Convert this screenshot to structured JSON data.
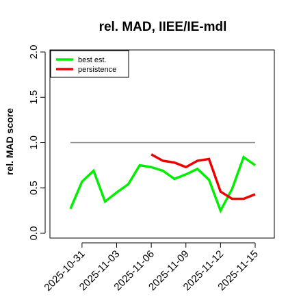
{
  "chart_data": {
    "type": "line",
    "title": "rel. MAD, IIEE/IE-mdl",
    "ylabel": "rel. MAD score",
    "xlabel": "",
    "ylim": [
      0,
      2
    ],
    "yticks": [
      "0.0",
      "0.5",
      "1.0",
      "1.5",
      "2.0"
    ],
    "ytick_values": [
      0,
      0.5,
      1.0,
      1.5,
      2.0
    ],
    "xticks": [
      "2025-10-31",
      "2025-11-03",
      "2025-11-06",
      "2025-11-09",
      "2025-11-12",
      "2025-11-15"
    ],
    "xtick_values": [
      1,
      4,
      7,
      10,
      13,
      16
    ],
    "xlim": [
      -0.5,
      17.5
    ],
    "x_dates": [
      "2025-10-30",
      "2025-10-31",
      "2025-11-01",
      "2025-11-02",
      "2025-11-03",
      "2025-11-04",
      "2025-11-05",
      "2025-11-06",
      "2025-11-07",
      "2025-11-08",
      "2025-11-09",
      "2025-11-10",
      "2025-11-11",
      "2025-11-12",
      "2025-11-13",
      "2025-11-14",
      "2025-11-15"
    ],
    "reference_line": {
      "y": 1.0,
      "x_from": "2025-10-30",
      "x_to": "2025-11-15",
      "color": "#808080"
    },
    "legend_position": "top-left",
    "series": [
      {
        "name": "best est.",
        "color": "#00ee00",
        "x": [
          0,
          1,
          2,
          3,
          4,
          5,
          6,
          7,
          8,
          9,
          10,
          11,
          12,
          13,
          14,
          15,
          16
        ],
        "values": [
          0.27,
          0.57,
          0.69,
          0.35,
          0.45,
          0.54,
          0.75,
          0.73,
          0.69,
          0.6,
          0.65,
          0.71,
          0.59,
          0.25,
          0.49,
          0.84,
          0.75
        ]
      },
      {
        "name": "persistence",
        "color": "#ee0000",
        "x": [
          7,
          8,
          9,
          10,
          11,
          12,
          13,
          14,
          15,
          16
        ],
        "values": [
          0.87,
          0.8,
          0.78,
          0.73,
          0.8,
          0.82,
          0.46,
          0.38,
          0.38,
          0.43
        ]
      }
    ]
  }
}
